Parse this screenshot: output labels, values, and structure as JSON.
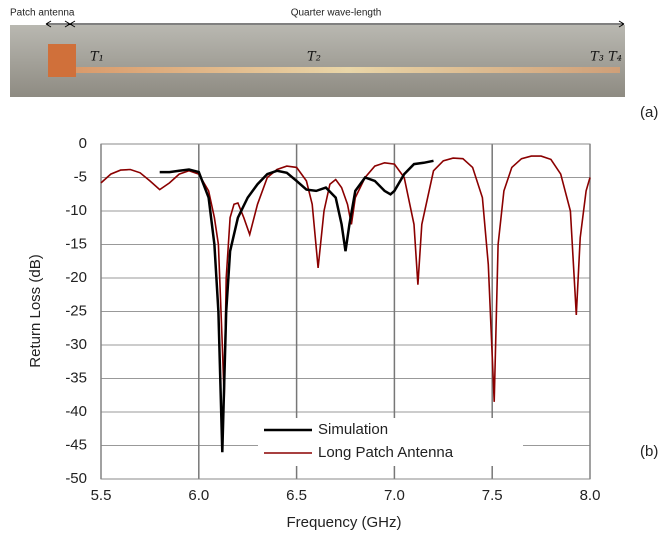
{
  "photo": {
    "left_label": "Patch antenna",
    "right_label": "Quarter wave-length",
    "markers": [
      "T₁",
      "T₂",
      "T₃ T₄"
    ],
    "panel_label": "(a)"
  },
  "chart_data": {
    "type": "line",
    "panel_label": "(b)",
    "x_label": "Frequency (GHz)",
    "y_label": "Return Loss (dB)",
    "xlim": [
      5.5,
      8.0
    ],
    "ylim": [
      -50,
      0
    ],
    "xticks": [
      5.5,
      {
        "value": 6,
        "label": "6.0"
      },
      6.5,
      {
        "value": 7,
        "label": "7.0"
      },
      7.5,
      {
        "value": 8,
        "label": "8.0"
      }
    ],
    "yticks": [
      0,
      -5,
      -10,
      -15,
      -20,
      -25,
      -30,
      -35,
      -40,
      -45,
      -50
    ],
    "grid": true,
    "legend": "lower center",
    "series": [
      {
        "name": "Simulation",
        "color": "#000000",
        "x": [
          5.8,
          5.85,
          5.9,
          5.95,
          6.0,
          6.05,
          6.08,
          6.1,
          6.12,
          6.14,
          6.16,
          6.2,
          6.25,
          6.3,
          6.35,
          6.4,
          6.45,
          6.5,
          6.55,
          6.6,
          6.65,
          6.7,
          6.73,
          6.75,
          6.77,
          6.8,
          6.85,
          6.9,
          6.95,
          6.98,
          7.0,
          7.05,
          7.1,
          7.15,
          7.2
        ],
        "values": [
          -4.2,
          -4.2,
          -4.0,
          -3.8,
          -4.2,
          -8,
          -15,
          -25,
          -46,
          -25,
          -16,
          -11,
          -8,
          -6,
          -4.5,
          -4,
          -4.3,
          -5.5,
          -6.8,
          -7,
          -6.5,
          -8,
          -12,
          -16,
          -12,
          -7,
          -5,
          -5.5,
          -7,
          -7.5,
          -7,
          -4.5,
          -3,
          -2.8,
          -2.5
        ]
      },
      {
        "name": "Long Patch Antenna",
        "color": "#8b0000",
        "x": [
          5.5,
          5.55,
          5.6,
          5.65,
          5.7,
          5.75,
          5.8,
          5.85,
          5.9,
          5.95,
          6.0,
          6.05,
          6.08,
          6.1,
          6.12,
          6.13,
          6.14,
          6.16,
          6.18,
          6.2,
          6.23,
          6.26,
          6.3,
          6.35,
          6.4,
          6.45,
          6.5,
          6.55,
          6.58,
          6.61,
          6.64,
          6.67,
          6.7,
          6.73,
          6.76,
          6.78,
          6.8,
          6.85,
          6.9,
          6.95,
          7.0,
          7.05,
          7.1,
          7.12,
          7.14,
          7.2,
          7.25,
          7.3,
          7.35,
          7.4,
          7.45,
          7.48,
          7.51,
          7.53,
          7.56,
          7.6,
          7.65,
          7.7,
          7.75,
          7.8,
          7.85,
          7.9,
          7.93,
          7.95,
          7.98,
          8.0
        ],
        "values": [
          -5.8,
          -4.5,
          -3.9,
          -3.8,
          -4.3,
          -5.5,
          -6.8,
          -5.8,
          -4.5,
          -4.0,
          -4.5,
          -7,
          -11,
          -15,
          -30,
          -38,
          -20,
          -11,
          -9,
          -8.8,
          -11,
          -13.5,
          -9,
          -5,
          -3.8,
          -3.3,
          -3.5,
          -5.5,
          -9,
          -18.5,
          -10,
          -6,
          -5.3,
          -6.5,
          -9,
          -12,
          -8,
          -5,
          -3.3,
          -2.8,
          -3,
          -5,
          -12,
          -21,
          -12,
          -4,
          -2.5,
          -2.1,
          -2.2,
          -3.5,
          -8,
          -18,
          -38.5,
          -15,
          -7,
          -3.5,
          -2.2,
          -1.8,
          -1.8,
          -2.3,
          -4.5,
          -10,
          -25.5,
          -14,
          -7,
          -5
        ]
      }
    ]
  }
}
